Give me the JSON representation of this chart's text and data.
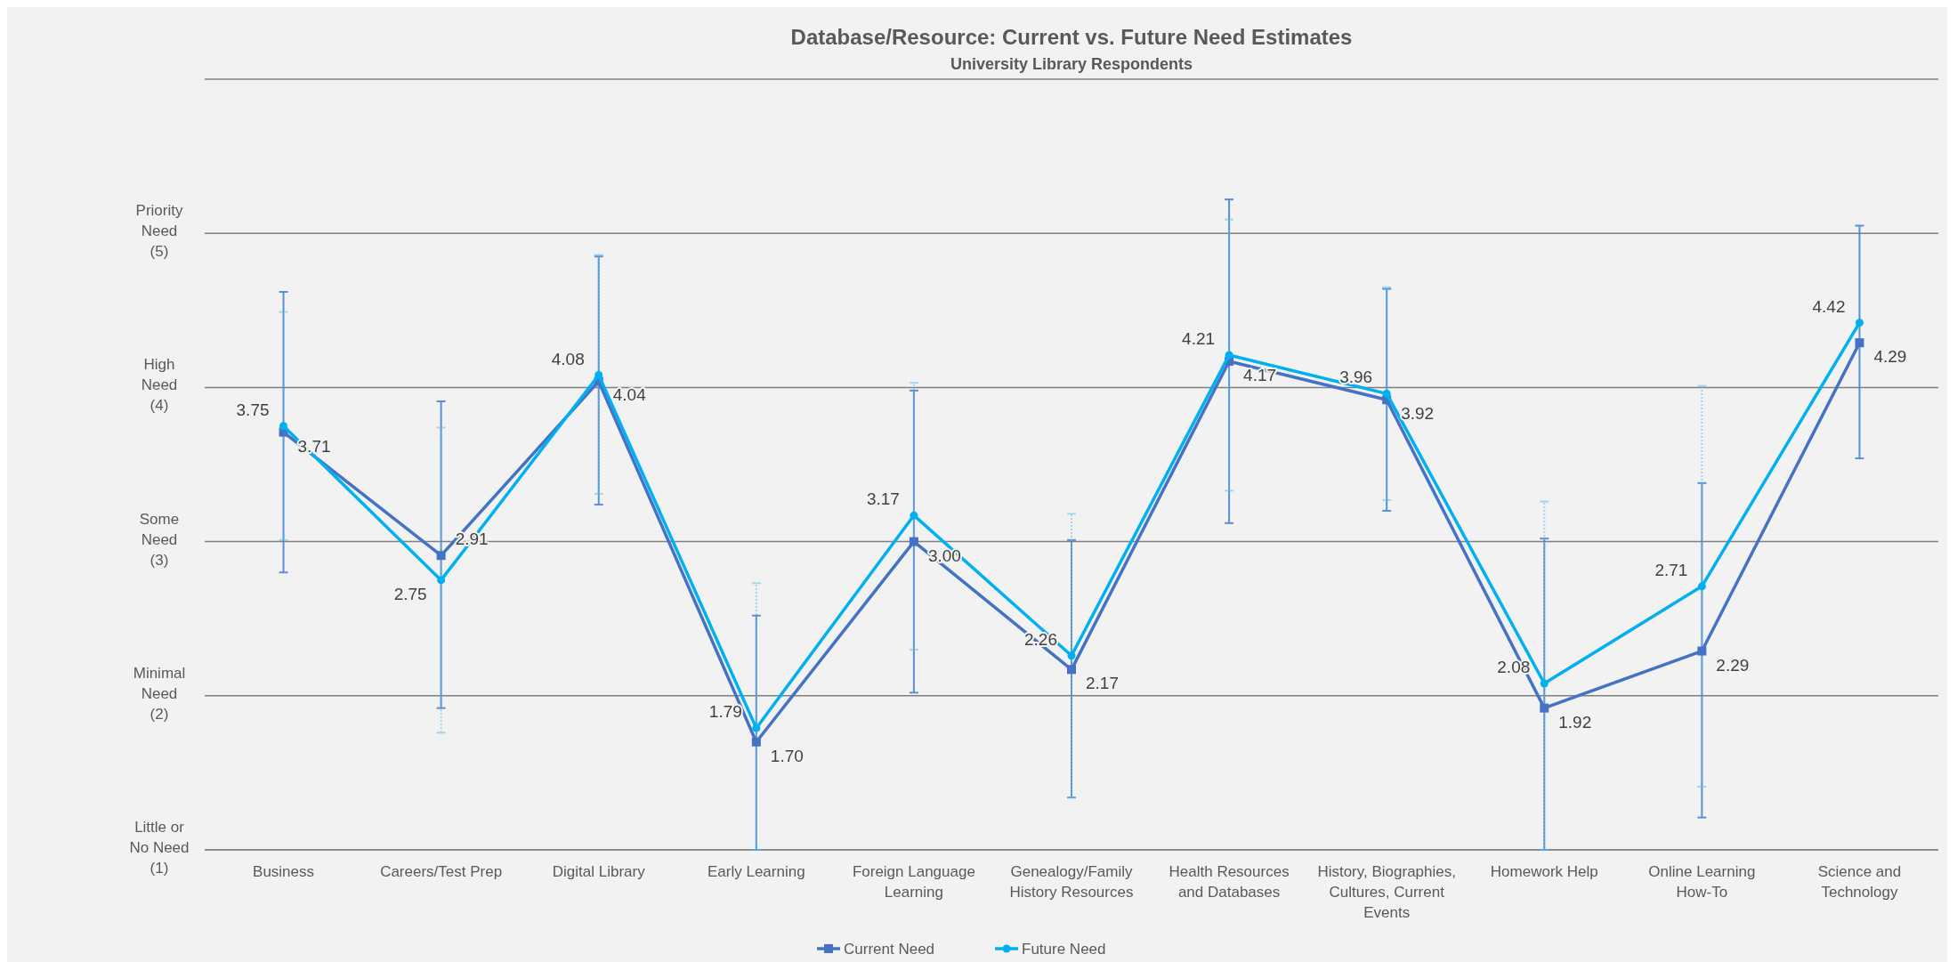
{
  "chart_data": {
    "type": "line",
    "title": "Database/Resource: Current vs. Future Need Estimates",
    "subtitle": "University Library Respondents",
    "categories": [
      "Business",
      "Careers/Test Prep",
      "Digital Library",
      "Early Learning",
      "Foreign Language\nLearning",
      "Genealogy/Family\nHistory Resources",
      "Health Resources\nand Databases",
      "History, Biographies,\nCultures, Current\nEvents",
      "Homework Help",
      "Online Learning\nHow-To",
      "Science and\nTechnology"
    ],
    "series": [
      {
        "name": "Current Need",
        "color": "#4472c4",
        "marker": "square",
        "values": [
          3.71,
          2.91,
          4.04,
          1.7,
          3.0,
          2.17,
          4.17,
          3.92,
          1.92,
          2.29,
          4.29
        ],
        "value_labels": [
          "3.71",
          "2.91",
          "4.04",
          "1.70",
          "3.00",
          "2.17",
          "4.17",
          "3.92",
          "1.92",
          "2.29",
          "4.29"
        ],
        "errors": [
          [
            2.8,
            4.62
          ],
          [
            1.92,
            3.91
          ],
          [
            3.24,
            4.85
          ],
          [
            1,
            2.52
          ],
          [
            2.02,
            3.98
          ],
          [
            1.34,
            3.01
          ],
          [
            3.12,
            5.22
          ],
          [
            3.2,
            4.64
          ],
          [
            1,
            3.02
          ],
          [
            1.21,
            3.38
          ],
          [
            3.54,
            5.05
          ]
        ]
      },
      {
        "name": "Future Need",
        "color": "#00b0f0",
        "marker": "circle",
        "values": [
          3.75,
          2.75,
          4.08,
          1.79,
          3.17,
          2.26,
          4.21,
          3.96,
          2.08,
          2.71,
          4.42
        ],
        "value_labels": [
          "3.75",
          "2.75",
          "4.08",
          "1.79",
          "3.17",
          "2.26",
          "4.21",
          "3.96",
          "2.08",
          "2.71",
          "4.42"
        ],
        "errors": [
          [
            3.01,
            4.49
          ],
          [
            1.76,
            3.74
          ],
          [
            3.31,
            4.86
          ],
          [
            1,
            2.73
          ],
          [
            2.3,
            4.03
          ],
          [
            1.34,
            3.18
          ],
          [
            3.33,
            5.09
          ],
          [
            3.27,
            4.65
          ],
          [
            1,
            3.26
          ],
          [
            1.41,
            4.01
          ],
          null
        ]
      }
    ],
    "ylim": [
      1,
      6
    ],
    "yticks": [
      {
        "value": 1,
        "label": "Little or\nNo Need\n(1)"
      },
      {
        "value": 2,
        "label": "Minimal\nNeed\n(2)"
      },
      {
        "value": 3,
        "label": "Some\nNeed\n(3)"
      },
      {
        "value": 4,
        "label": "High\nNeed\n(4)"
      },
      {
        "value": 5,
        "label": "Priority\nNeed\n(5)"
      },
      {
        "value": 6,
        "label": null
      }
    ],
    "grid": "y",
    "legend": "bottom",
    "line_style": "solid"
  }
}
